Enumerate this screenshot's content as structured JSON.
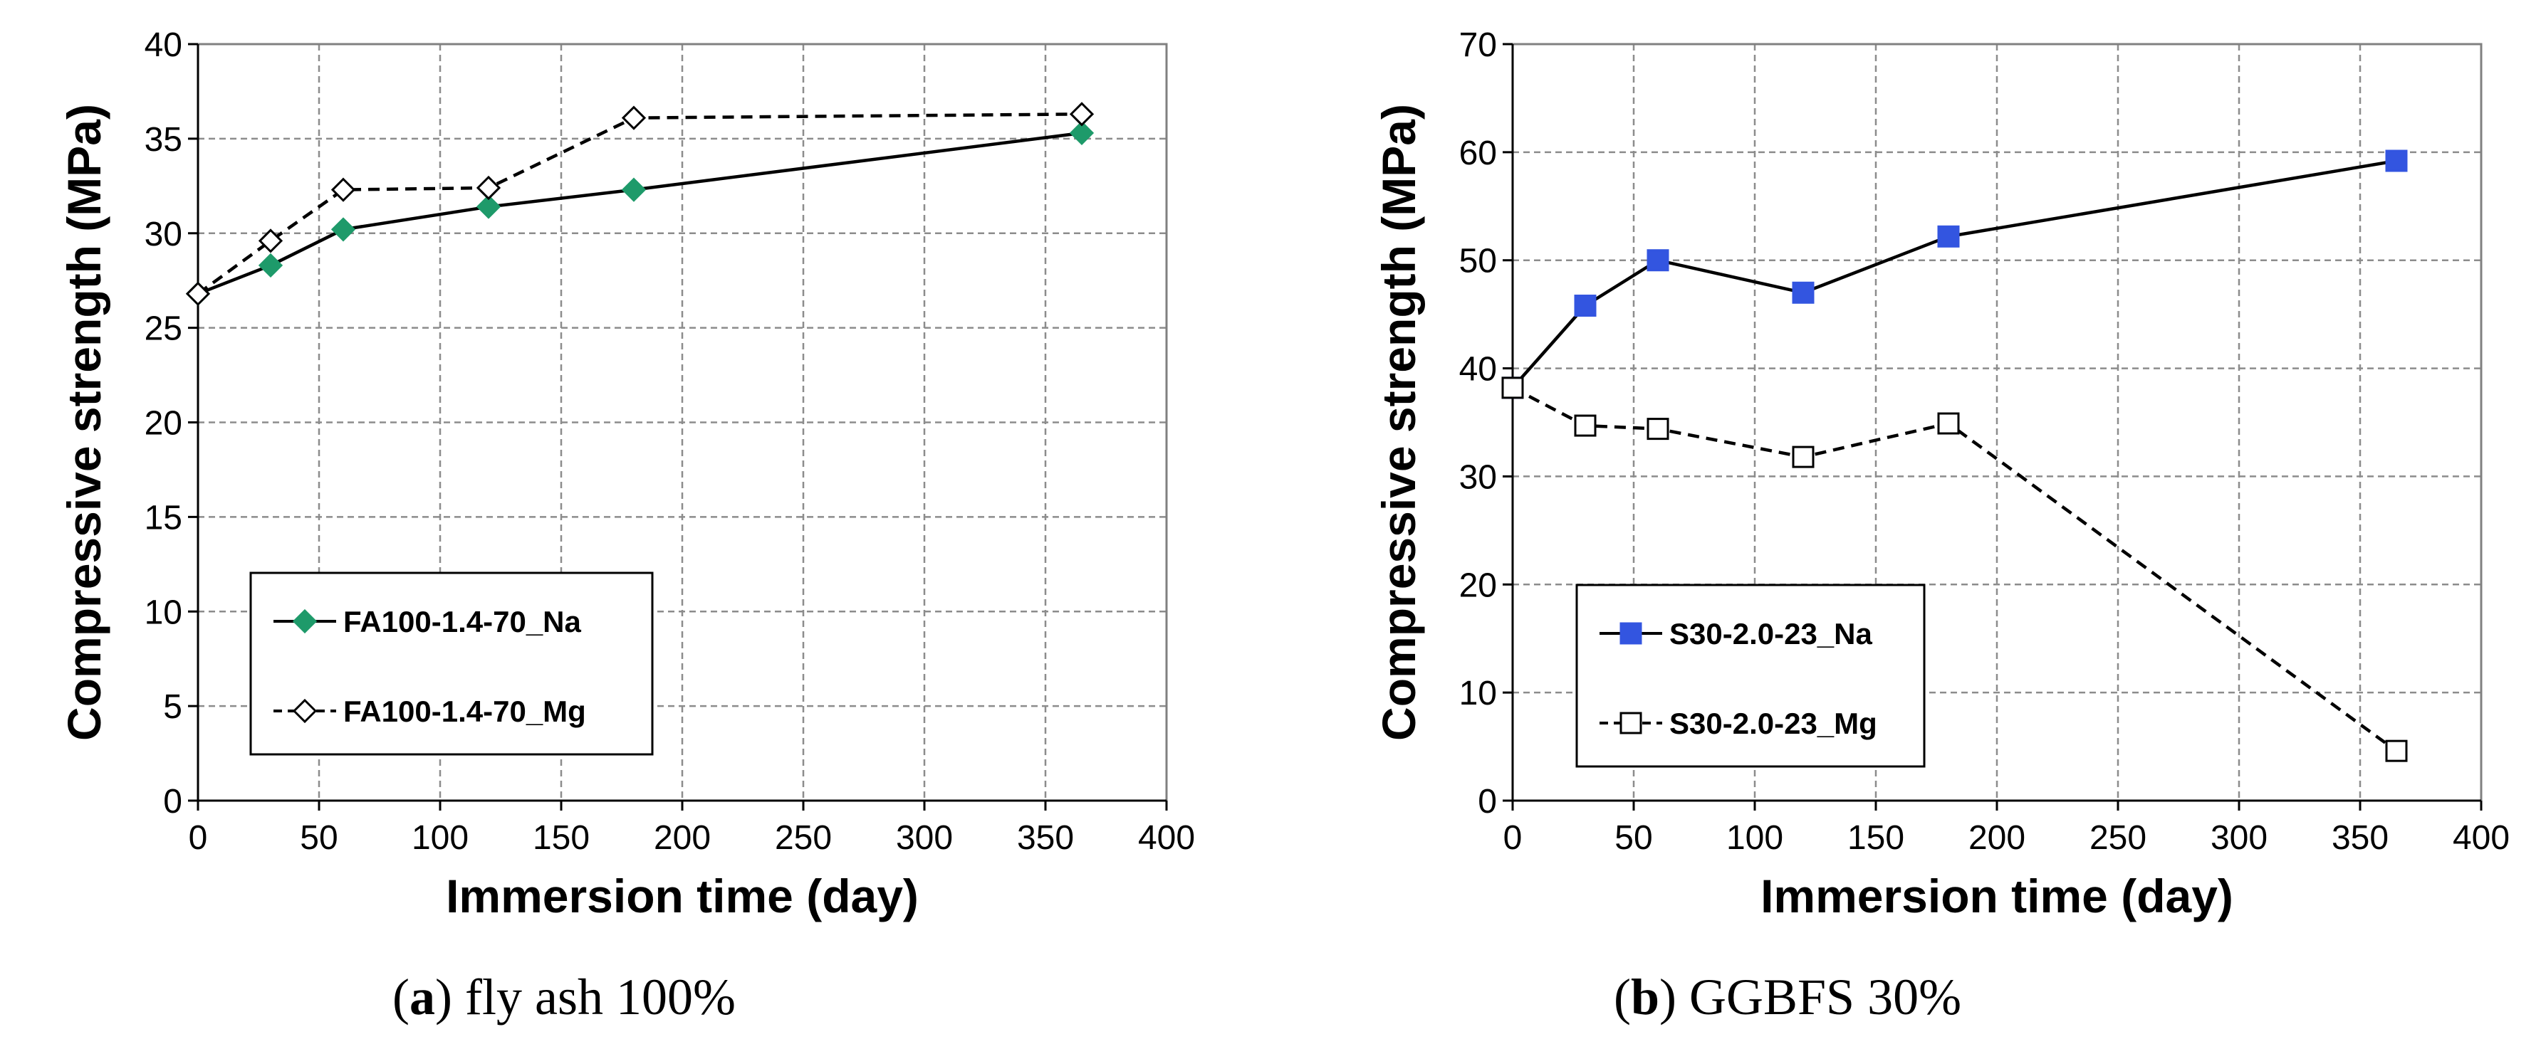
{
  "chart_data": [
    {
      "type": "line",
      "caption_letter": "a",
      "caption_text": "fly ash 100%",
      "xlabel": "Immersion time (day)",
      "ylabel": "Compressive strength (MPa)",
      "xlim": [
        0,
        400
      ],
      "ylim": [
        0,
        40
      ],
      "xticks": [
        0,
        50,
        100,
        150,
        200,
        250,
        300,
        350,
        400
      ],
      "yticks": [
        0,
        5,
        10,
        15,
        20,
        25,
        30,
        35,
        40
      ],
      "grid": true,
      "legend_position": "bottom-left",
      "series": [
        {
          "name": "FA100-1.4-70_Na",
          "x": [
            0,
            30,
            60,
            120,
            180,
            365
          ],
          "y": [
            26.8,
            28.3,
            30.2,
            31.4,
            32.3,
            35.3
          ],
          "color": "#1e9a6a",
          "marker": "diamond",
          "marker_fill": "#1e9a6a",
          "line_style": "solid"
        },
        {
          "name": "FA100-1.4-70_Mg",
          "x": [
            0,
            30,
            60,
            120,
            180,
            365
          ],
          "y": [
            26.8,
            29.6,
            32.3,
            32.4,
            36.1,
            36.3
          ],
          "color": "#000000",
          "marker": "diamond",
          "marker_fill": "#ffffff",
          "line_style": "dashed"
        }
      ]
    },
    {
      "type": "line",
      "caption_letter": "b",
      "caption_text": "GGBFS 30%",
      "xlabel": "Immersion time (day)",
      "ylabel": "Compressive strength (MPa)",
      "xlim": [
        0,
        400
      ],
      "ylim": [
        0,
        70
      ],
      "xticks": [
        0,
        50,
        100,
        150,
        200,
        250,
        300,
        350,
        400
      ],
      "yticks": [
        0,
        10,
        20,
        30,
        40,
        50,
        60,
        70
      ],
      "grid": true,
      "legend_position": "bottom-left",
      "series": [
        {
          "name": "S30-2.0-23_Na",
          "x": [
            0,
            30,
            60,
            120,
            180,
            365
          ],
          "y": [
            38.2,
            45.8,
            50.0,
            47.0,
            52.2,
            59.2
          ],
          "color": "#3355e0",
          "marker": "square",
          "marker_fill": "#3355e0",
          "line_style": "solid"
        },
        {
          "name": "S30-2.0-23_Mg",
          "x": [
            0,
            30,
            60,
            120,
            180,
            365
          ],
          "y": [
            38.2,
            34.7,
            34.4,
            31.8,
            34.9,
            4.6
          ],
          "color": "#000000",
          "marker": "square",
          "marker_fill": "#ffffff",
          "line_style": "dashed"
        }
      ]
    }
  ]
}
